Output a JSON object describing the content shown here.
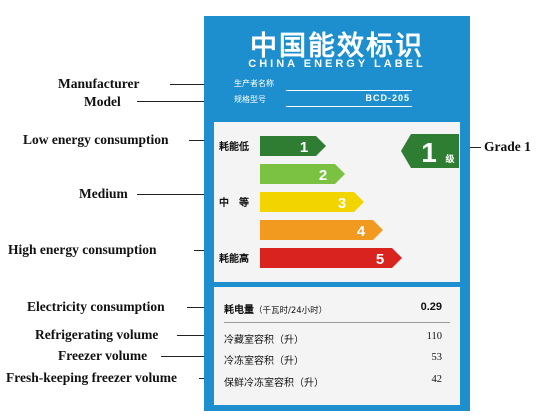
{
  "callouts": {
    "manufacturer": "Manufacturer",
    "model": "Model",
    "low": "Low energy consumption",
    "medium": "Medium",
    "high": "High energy consumption",
    "grade": "Grade 1",
    "electricity": "Electricity consumption",
    "refrigerating": "Refrigerating volume",
    "freezer": "Freezer volume",
    "fresh": "Fresh-keeping freezer volume"
  },
  "label": {
    "title_cn": "中国能效标识",
    "title_en": "CHINA ENERGY LABEL",
    "manufacturer_field": "生产者名称",
    "model_field": "规格型号",
    "model_value": "BCD-205"
  },
  "grades": {
    "low_label": "耗能低",
    "mid_label": "中　等",
    "high_label": "耗能高",
    "bars": [
      {
        "number": "1",
        "color": "#2e7d32"
      },
      {
        "number": "2",
        "color": "#7cc242"
      },
      {
        "number": "3",
        "color": "#f2d500"
      },
      {
        "number": "4",
        "color": "#f29a1f"
      },
      {
        "number": "5",
        "color": "#d8231f"
      }
    ],
    "rating_number": "1",
    "rating_suffix": "级",
    "rating_color": "#2e7d32"
  },
  "data": {
    "electricity_label": "耗电量",
    "electricity_unit": "（千瓦时/24小时）",
    "electricity_value": "0.29",
    "refrigerating_label": "冷藏室容积（升）",
    "refrigerating_value": "110",
    "freezer_label": "冷冻室容积（升）",
    "freezer_value": "53",
    "fresh_label": "保鲜冷冻室容积（升）",
    "fresh_value": "42"
  }
}
